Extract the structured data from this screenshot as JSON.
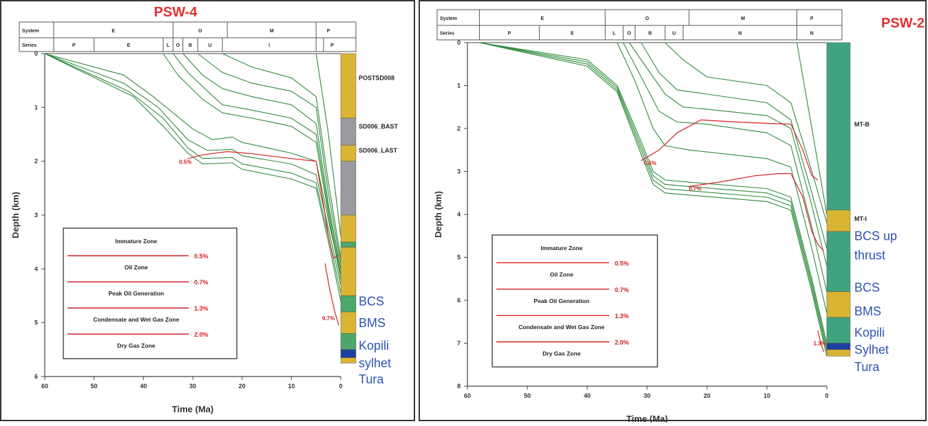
{
  "chart_data": [
    {
      "type": "line",
      "well": "PSW-4",
      "xlabel": "Time (Ma)",
      "ylabel": "Depth (km)",
      "xlim": [
        60,
        0
      ],
      "ylim": [
        0,
        6
      ],
      "x_ticks": [
        "60",
        "50",
        "40",
        "30",
        "20",
        "10",
        "0"
      ],
      "y_ticks": [
        "0",
        "1",
        "2",
        "3",
        "4",
        "5",
        "6"
      ],
      "header": {
        "system_label": "System",
        "series_label": "Series",
        "system": [
          {
            "label": "E",
            "from": 60,
            "to": 34
          },
          {
            "label": "O",
            "from": 34,
            "to": 23
          },
          {
            "label": "M",
            "from": 23,
            "to": 5
          },
          {
            "label": "P",
            "from": 5,
            "to": 0
          }
        ],
        "series": [
          {
            "label": "P",
            "from": 60,
            "to": 50
          },
          {
            "label": "E",
            "from": 50,
            "to": 36
          },
          {
            "label": "L",
            "from": 36,
            "to": 34
          },
          {
            "label": "O",
            "from": 34,
            "to": 32
          },
          {
            "label": "B",
            "from": 32,
            "to": 29
          },
          {
            "label": "U",
            "from": 29,
            "to": 24
          },
          {
            "label": "I",
            "from": 24,
            "to": 5
          },
          {
            "label": "",
            "from": 5,
            "to": 3.5
          },
          {
            "label": "P",
            "from": 3.5,
            "to": 0
          }
        ]
      },
      "burial_curves": [
        {
          "x": [
            60,
            44,
            38,
            30,
            26,
            22,
            20,
            10,
            5,
            2.5,
            0
          ],
          "y": [
            0,
            0.4,
            0.8,
            1.4,
            1.6,
            1.55,
            1.65,
            1.85,
            2.0,
            3.1,
            4.1
          ]
        },
        {
          "x": [
            60,
            44,
            37,
            31,
            27,
            22,
            20,
            10,
            5,
            2.5,
            0
          ],
          "y": [
            0,
            0.55,
            1.0,
            1.6,
            1.8,
            1.78,
            1.9,
            2.05,
            2.25,
            3.25,
            4.3
          ]
        },
        {
          "x": [
            60,
            43,
            36,
            31,
            28,
            22,
            20,
            10,
            5,
            2.5,
            0
          ],
          "y": [
            0,
            0.7,
            1.2,
            1.75,
            1.95,
            1.93,
            2.05,
            2.22,
            2.4,
            3.4,
            4.45
          ]
        },
        {
          "x": [
            60,
            42,
            36,
            31,
            28,
            22,
            20,
            10,
            5,
            2.5,
            0
          ],
          "y": [
            0,
            0.8,
            1.35,
            1.85,
            2.05,
            2.03,
            2.15,
            2.33,
            2.5,
            3.5,
            4.6
          ]
        },
        {
          "x": [
            36,
            33,
            28,
            24,
            18,
            10,
            5,
            2.5,
            0
          ],
          "y": [
            0,
            0.4,
            0.85,
            1.1,
            1.2,
            1.35,
            1.65,
            3.0,
            4.2
          ]
        },
        {
          "x": [
            34,
            31,
            27,
            24,
            18,
            10,
            5,
            2.5,
            0
          ],
          "y": [
            0,
            0.35,
            0.7,
            0.95,
            1.05,
            1.2,
            1.5,
            2.9,
            4.1
          ]
        },
        {
          "x": [
            32,
            28,
            24,
            18,
            10,
            5,
            2.5,
            0
          ],
          "y": [
            0,
            0.4,
            0.65,
            0.8,
            0.95,
            1.3,
            2.8,
            4.0
          ]
        },
        {
          "x": [
            29,
            24,
            18,
            10,
            5,
            2.5,
            0
          ],
          "y": [
            0,
            0.35,
            0.55,
            0.7,
            1.0,
            2.6,
            3.9
          ]
        },
        {
          "x": [
            24,
            18,
            10,
            5,
            2.5,
            0
          ],
          "y": [
            0,
            0.25,
            0.45,
            0.8,
            2.4,
            3.8
          ]
        },
        {
          "x": [
            5,
            2.5,
            0
          ],
          "y": [
            0,
            1.5,
            3.4
          ]
        }
      ],
      "maturity_curves": [
        {
          "label": "0.5%",
          "x": [
            31,
            28,
            23,
            18,
            10,
            5,
            3.5,
            2.5,
            1.5,
            0.5
          ],
          "y": [
            1.95,
            1.88,
            1.82,
            1.86,
            1.95,
            2.0,
            2.8,
            3.4,
            3.8,
            3.75
          ]
        },
        {
          "label": "0.7%",
          "x": [
            3.2,
            2.2,
            1.2,
            0.4
          ],
          "y": [
            3.9,
            4.4,
            4.8,
            5.05
          ]
        }
      ],
      "maturity_labels": [
        {
          "text": "0.5%",
          "x": 31.5,
          "y": 2.05
        },
        {
          "text": "0.7%",
          "x": 2.5,
          "y": 4.95
        }
      ],
      "strat_column": [
        {
          "from": 0,
          "to": 1.2,
          "fill": "#d9b533"
        },
        {
          "from": 1.2,
          "to": 1.7,
          "fill": "#9a9aa0"
        },
        {
          "from": 1.7,
          "to": 2.0,
          "fill": "#d9b533"
        },
        {
          "from": 2.0,
          "to": 3.0,
          "fill": "#9a9aa0"
        },
        {
          "from": 3.0,
          "to": 3.5,
          "fill": "#d9b533"
        },
        {
          "from": 3.5,
          "to": 3.6,
          "fill": "#4da66b"
        },
        {
          "from": 3.6,
          "to": 4.5,
          "fill": "#d9b533"
        },
        {
          "from": 4.5,
          "to": 4.8,
          "fill": "#4da66b"
        },
        {
          "from": 4.8,
          "to": 5.2,
          "fill": "#d9b533"
        },
        {
          "from": 5.2,
          "to": 5.5,
          "fill": "#4da66b"
        },
        {
          "from": 5.5,
          "to": 5.65,
          "fill": "#1c3fa0"
        },
        {
          "from": 5.65,
          "to": 5.75,
          "fill": "#d9b533"
        }
      ],
      "formation_labels": [
        {
          "text": "POSTSD008",
          "y": 0.45,
          "color": "#222222",
          "size": 9
        },
        {
          "text": "SD006_BAST",
          "y": 1.35,
          "color": "#222222",
          "size": 9
        },
        {
          "text": "SD006_LAST",
          "y": 1.8,
          "color": "#222222",
          "size": 9
        },
        {
          "text": "BCS",
          "y": 4.6,
          "color": "#2d52b6",
          "size": 18
        },
        {
          "text": "BMS",
          "y": 5.0,
          "color": "#2d52b6",
          "size": 18
        },
        {
          "text": "Kopili",
          "y": 5.42,
          "color": "#2d52b6",
          "size": 18
        },
        {
          "text": "sylhet",
          "y": 5.75,
          "color": "#2d52b6",
          "size": 18
        },
        {
          "text": "Tura",
          "y": 6.05,
          "color": "#2d52b6",
          "size": 18
        }
      ],
      "legend": {
        "placement": "bottom-left",
        "entries": [
          {
            "zone": "Immature Zone",
            "value": "0.5%"
          },
          {
            "zone": "Oil Zone",
            "value": "0.7%"
          },
          {
            "zone": "Peak Oil Generation",
            "value": "1.3%"
          },
          {
            "zone": "Condensate and Wet Gas Zone",
            "value": "2.0%"
          },
          {
            "zone": "Dry Gas Zone",
            "value": ""
          }
        ]
      },
      "colors": {
        "burial": "#2e8b3a",
        "maturity": "#d42020",
        "title": "#e23030",
        "axis": "#444444"
      }
    },
    {
      "type": "line",
      "well": "PSW-2",
      "xlabel": "Time (Ma)",
      "ylabel": "Depth (km)",
      "xlim": [
        60,
        0
      ],
      "ylim": [
        0,
        8
      ],
      "x_ticks": [
        "60",
        "50",
        "40",
        "30",
        "20",
        "10",
        "0"
      ],
      "y_ticks": [
        "0",
        "1",
        "2",
        "3",
        "4",
        "5",
        "6",
        "7",
        "8"
      ],
      "header": {
        "system_label": "System",
        "series_label": "Series",
        "system": [
          {
            "label": "E",
            "from": 58,
            "to": 37
          },
          {
            "label": "O",
            "from": 37,
            "to": 23
          },
          {
            "label": "M",
            "from": 23,
            "to": 5
          },
          {
            "label": "P",
            "from": 5,
            "to": 0
          }
        ],
        "series": [
          {
            "label": "P",
            "from": 58,
            "to": 48
          },
          {
            "label": "E",
            "from": 48,
            "to": 37
          },
          {
            "label": "L",
            "from": 37,
            "to": 34
          },
          {
            "label": "O",
            "from": 34,
            "to": 32
          },
          {
            "label": "B",
            "from": 32,
            "to": 27
          },
          {
            "label": "U",
            "from": 27,
            "to": 24
          },
          {
            "label": "N",
            "from": 24,
            "to": 5
          },
          {
            "label": "N",
            "from": 5,
            "to": 0
          }
        ]
      },
      "burial_curves": [
        {
          "x": [
            58,
            40,
            35,
            31,
            29,
            27,
            23,
            10,
            6,
            2.5,
            0
          ],
          "y": [
            0,
            0.4,
            1.0,
            2.3,
            3.0,
            3.2,
            3.25,
            3.4,
            3.6,
            5.5,
            7.0
          ]
        },
        {
          "x": [
            58,
            40,
            35,
            31,
            29,
            27,
            23,
            10,
            6,
            2.5,
            0
          ],
          "y": [
            0,
            0.45,
            1.05,
            2.4,
            3.1,
            3.3,
            3.35,
            3.5,
            3.7,
            5.6,
            7.1
          ]
        },
        {
          "x": [
            58,
            40,
            35,
            31,
            29,
            27,
            23,
            10,
            6,
            2.5,
            0
          ],
          "y": [
            0,
            0.5,
            1.1,
            2.5,
            3.2,
            3.4,
            3.45,
            3.6,
            3.8,
            5.7,
            7.2
          ]
        },
        {
          "x": [
            58,
            40,
            35,
            31,
            29,
            27,
            23,
            10,
            6,
            2.5,
            0
          ],
          "y": [
            0,
            0.55,
            1.15,
            2.6,
            3.3,
            3.5,
            3.55,
            3.7,
            3.9,
            5.8,
            7.3
          ]
        },
        {
          "x": [
            35,
            32,
            29,
            27,
            23,
            10,
            6,
            2.5,
            0
          ],
          "y": [
            0,
            0.9,
            2.0,
            2.4,
            2.5,
            2.7,
            2.9,
            4.8,
            6.3
          ]
        },
        {
          "x": [
            34,
            31,
            28,
            25,
            20,
            10,
            6,
            2.5,
            0
          ],
          "y": [
            0,
            0.8,
            1.6,
            1.85,
            1.9,
            2.1,
            2.4,
            4.3,
            5.8
          ]
        },
        {
          "x": [
            33,
            30,
            27,
            24,
            20,
            10,
            6,
            2.5,
            0
          ],
          "y": [
            0,
            0.6,
            1.2,
            1.5,
            1.55,
            1.7,
            2.0,
            3.8,
            5.2
          ]
        },
        {
          "x": [
            31,
            28,
            25,
            20,
            10,
            6,
            2.5,
            0
          ],
          "y": [
            0,
            0.7,
            1.1,
            1.2,
            1.4,
            1.8,
            3.5,
            4.8
          ]
        },
        {
          "x": [
            27,
            24,
            20,
            10,
            6,
            2.5,
            0
          ],
          "y": [
            0,
            0.4,
            0.8,
            1.0,
            1.4,
            3.0,
            4.2
          ]
        },
        {
          "x": [
            5,
            2.5,
            0
          ],
          "y": [
            0,
            2.0,
            4.0
          ]
        }
      ],
      "maturity_curves": [
        {
          "label": "0.5%",
          "x": [
            31,
            28,
            25,
            21,
            15,
            10,
            6,
            4,
            2.5,
            1.5
          ],
          "y": [
            2.75,
            2.5,
            2.1,
            1.8,
            1.85,
            1.88,
            1.9,
            2.5,
            3.1,
            3.2
          ]
        },
        {
          "label": "0.7%",
          "x": [
            23,
            18,
            12,
            8,
            6,
            4,
            2.5,
            1.5,
            0.5
          ],
          "y": [
            3.35,
            3.25,
            3.1,
            3.05,
            3.05,
            3.6,
            4.4,
            4.7,
            4.85
          ]
        },
        {
          "label": "1.3%",
          "x": [
            1.5,
            1.0,
            0.5
          ],
          "y": [
            6.7,
            7.0,
            7.2
          ]
        }
      ],
      "maturity_labels": [
        {
          "text": "0.5%",
          "x": 29.5,
          "y": 2.85
        },
        {
          "text": "0.7%",
          "x": 22.0,
          "y": 3.45
        },
        {
          "text": "1.3%",
          "x": 1.2,
          "y": 7.05
        }
      ],
      "strat_column": [
        {
          "from": 0,
          "to": 3.9,
          "fill": "#3fa37f"
        },
        {
          "from": 3.9,
          "to": 4.4,
          "fill": "#d9b533"
        },
        {
          "from": 4.4,
          "to": 5.8,
          "fill": "#3fa37f"
        },
        {
          "from": 5.8,
          "to": 6.4,
          "fill": "#d9b533"
        },
        {
          "from": 6.4,
          "to": 7.0,
          "fill": "#3fa37f"
        },
        {
          "from": 7.0,
          "to": 7.15,
          "fill": "#1c3fa0"
        },
        {
          "from": 7.15,
          "to": 7.3,
          "fill": "#d9b533"
        }
      ],
      "formation_labels": [
        {
          "text": "MT-B",
          "y": 1.9,
          "color": "#222222",
          "size": 9
        },
        {
          "text": "MT-I",
          "y": 4.1,
          "color": "#222222",
          "size": 9
        },
        {
          "text": "BCS up",
          "y": 4.5,
          "color": "#2d52b6",
          "size": 18
        },
        {
          "text": "thrust",
          "y": 4.95,
          "color": "#2d52b6",
          "size": 18
        },
        {
          "text": "BCS",
          "y": 5.7,
          "color": "#2d52b6",
          "size": 18
        },
        {
          "text": "BMS",
          "y": 6.25,
          "color": "#2d52b6",
          "size": 18
        },
        {
          "text": "Kopili",
          "y": 6.75,
          "color": "#2d52b6",
          "size": 18
        },
        {
          "text": "Sylhet",
          "y": 7.15,
          "color": "#2d52b6",
          "size": 18
        },
        {
          "text": "Tura",
          "y": 7.55,
          "color": "#2d52b6",
          "size": 18
        }
      ],
      "legend": {
        "placement": "bottom-left",
        "entries": [
          {
            "zone": "Immature Zone",
            "value": "0.5%"
          },
          {
            "zone": "Oil Zone",
            "value": "0.7%"
          },
          {
            "zone": "Peak Oil Generation",
            "value": "1.3%"
          },
          {
            "zone": "Condensate and Wet Gas Zone",
            "value": "2.0%"
          },
          {
            "zone": "Dry Gas Zone",
            "value": ""
          }
        ]
      },
      "colors": {
        "burial": "#2e8b3a",
        "maturity": "#d42020",
        "title": "#e23030",
        "axis": "#444444"
      }
    }
  ]
}
